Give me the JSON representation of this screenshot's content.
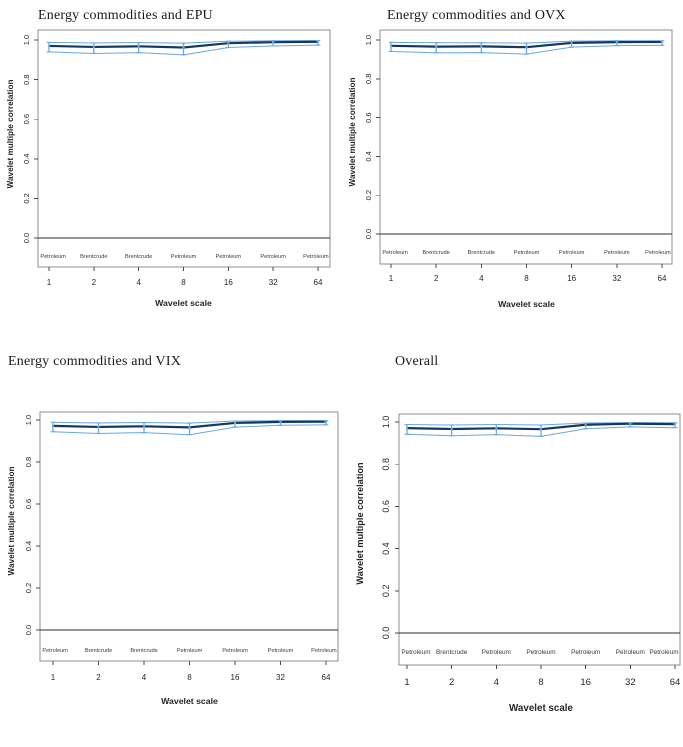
{
  "page": {
    "background": "#ffffff"
  },
  "colors": {
    "line": "#17375d",
    "ci": "#69a8e0",
    "frame": "#8f8f8f",
    "tick": "#4a4a4a",
    "text": "#262626",
    "zero_line": "#2e2e2e"
  },
  "chart_data": [
    {
      "type": "line",
      "title": "Energy commodities and EPU",
      "xlabel": "Wavelet scale",
      "ylabel": "Wavelet multiple correlation",
      "x_categories": [
        "1",
        "2",
        "4",
        "8",
        "16",
        "32",
        "64"
      ],
      "y_ticks": [
        "0.0",
        "0.2",
        "0.4",
        "0.6",
        "0.8",
        "1.0"
      ],
      "ylim": [
        -0.15,
        1.05
      ],
      "grid": false,
      "legend": "none",
      "band_labels": [
        "Petroleum",
        "Brentcrude",
        "Brentcrude",
        "Petroleum",
        "Petroleum",
        "Petroleum",
        "Petroleum"
      ],
      "series": [
        {
          "name": "Wavelet multiple correlation",
          "values": [
            0.97,
            0.965,
            0.968,
            0.962,
            0.984,
            0.989,
            0.991
          ]
        },
        {
          "name": "Upper 95% CI",
          "values": [
            0.988,
            0.985,
            0.987,
            0.984,
            0.994,
            0.996,
            0.997
          ]
        },
        {
          "name": "Lower 95% CI",
          "values": [
            0.94,
            0.932,
            0.936,
            0.925,
            0.962,
            0.97,
            0.974
          ]
        }
      ]
    },
    {
      "type": "line",
      "title": "Energy commodities and OVX",
      "xlabel": "Wavelet scale",
      "ylabel": "Wavelet multiple correlation",
      "x_categories": [
        "1",
        "2",
        "4",
        "8",
        "16",
        "32",
        "64"
      ],
      "y_ticks": [
        "0.0",
        "0.2",
        "0.4",
        "0.6",
        "0.8",
        "1.0"
      ],
      "ylim": [
        -0.15,
        1.05
      ],
      "grid": false,
      "legend": "none",
      "band_labels": [
        "Petroleum",
        "Brentcrude",
        "Brentcrude",
        "Petroleum",
        "Petroleum",
        "Petroleum",
        "Petroleum"
      ],
      "series": [
        {
          "name": "Wavelet multiple correlation",
          "values": [
            0.97,
            0.966,
            0.967,
            0.963,
            0.985,
            0.989,
            0.99
          ]
        },
        {
          "name": "Upper 95% CI",
          "values": [
            0.988,
            0.986,
            0.986,
            0.984,
            0.994,
            0.996,
            0.996
          ]
        },
        {
          "name": "Lower 95% CI",
          "values": [
            0.941,
            0.934,
            0.935,
            0.927,
            0.963,
            0.971,
            0.972
          ]
        }
      ]
    },
    {
      "type": "line",
      "title": "Energy commodities and VIX",
      "xlabel": "Wavelet scale",
      "ylabel": "Wavelet multiple correlation",
      "x_categories": [
        "1",
        "2",
        "4",
        "8",
        "16",
        "32",
        "64"
      ],
      "y_ticks": [
        "0.0",
        "0.2",
        "0.4",
        "0.6",
        "0.8",
        "1.0"
      ],
      "ylim": [
        -0.15,
        1.05
      ],
      "grid": false,
      "legend": "none",
      "band_labels": [
        "Petroleum",
        "Brentcrude",
        "Brentcrude",
        "Petroleum",
        "Petroleum",
        "Petroleum",
        "Petroleum"
      ],
      "series": [
        {
          "name": "Wavelet multiple correlation",
          "values": [
            0.972,
            0.967,
            0.97,
            0.965,
            0.986,
            0.991,
            0.992
          ]
        },
        {
          "name": "Upper 95% CI",
          "values": [
            0.989,
            0.986,
            0.988,
            0.985,
            0.995,
            0.997,
            0.997
          ]
        },
        {
          "name": "Lower 95% CI",
          "values": [
            0.944,
            0.936,
            0.94,
            0.93,
            0.966,
            0.975,
            0.977
          ]
        }
      ]
    },
    {
      "type": "line",
      "title": "Overall",
      "xlabel": "Wavelet scale",
      "ylabel": "Wavelet multiple correlation",
      "x_categories": [
        "1",
        "2",
        "4",
        "8",
        "16",
        "32",
        "64"
      ],
      "y_ticks": [
        "0.0",
        "0.2",
        "0.4",
        "0.6",
        "0.8",
        "1.0"
      ],
      "ylim": [
        -0.15,
        1.05
      ],
      "grid": false,
      "legend": "none",
      "band_labels": [
        "Petroleum",
        "Brentcrude",
        "Petroleum",
        "Petroleum",
        "Petroleum",
        "Petroleum",
        "Petroleum"
      ],
      "series": [
        {
          "name": "Wavelet multiple correlation",
          "values": [
            0.971,
            0.967,
            0.97,
            0.966,
            0.987,
            0.992,
            0.99
          ]
        },
        {
          "name": "Upper 95% CI",
          "values": [
            0.988,
            0.986,
            0.988,
            0.986,
            0.995,
            0.997,
            0.996
          ]
        },
        {
          "name": "Lower 95% CI",
          "values": [
            0.942,
            0.935,
            0.94,
            0.932,
            0.968,
            0.977,
            0.973
          ]
        }
      ]
    }
  ]
}
